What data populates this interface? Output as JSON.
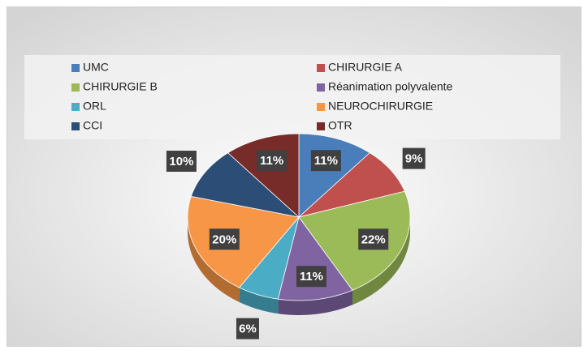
{
  "chart_data": {
    "type": "pie",
    "categories": [
      "UMC",
      "CHIRURGIE A",
      "CHIRURGIE B",
      "Réanimation polyvalente",
      "ORL",
      "NEUROCHIRURGIE",
      "CCI",
      "OTR"
    ],
    "values": [
      11,
      9,
      22,
      11,
      6,
      20,
      10,
      11
    ],
    "value_labels": [
      "11%",
      "9%",
      "22%",
      "11%",
      "6%",
      "20%",
      "10%",
      "11%"
    ],
    "colors": [
      "#4a7ebb",
      "#c0504d",
      "#9bbb59",
      "#8064a2",
      "#4bacc6",
      "#f79646",
      "#2c4d75",
      "#772c2a"
    ],
    "legend": "top"
  }
}
